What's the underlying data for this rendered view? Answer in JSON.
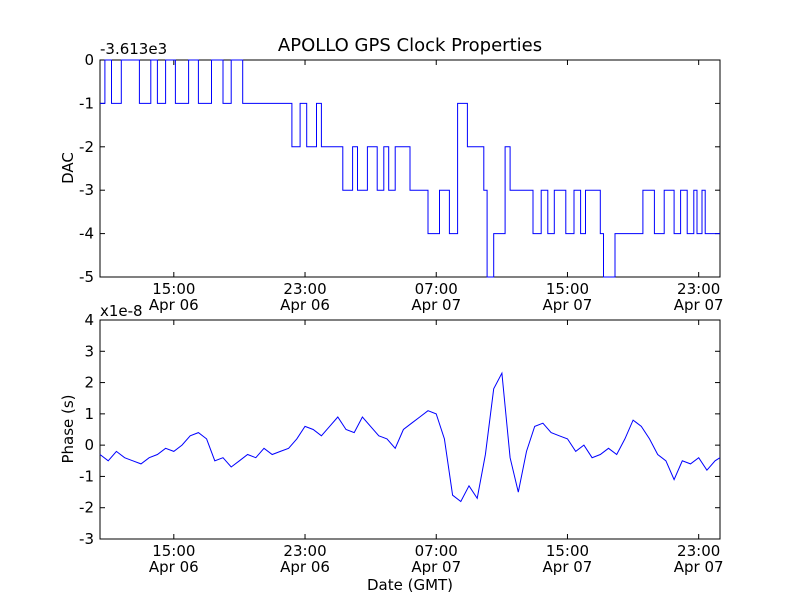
{
  "figure": {
    "title": "APOLLO GPS Clock Properties",
    "xlabel": "Date (GMT)",
    "line_color": "#0000ff"
  },
  "chart_data": [
    {
      "type": "line",
      "title": "APOLLO GPS Clock Properties",
      "ylabel": "DAC",
      "offset_label": "-3.613e3",
      "ylim": [
        -5,
        0
      ],
      "yticks": [
        "0",
        "-1",
        "-2",
        "-3",
        "-4",
        "-5"
      ],
      "xlim_hours": [
        10.5,
        48.3
      ],
      "xticks": [
        {
          "time": "15:00",
          "date": "Apr 06",
          "hour": 15
        },
        {
          "time": "23:00",
          "date": "Apr 06",
          "hour": 23
        },
        {
          "time": "07:00",
          "date": "Apr 07",
          "hour": 31
        },
        {
          "time": "15:00",
          "date": "Apr 07",
          "hour": 39
        },
        {
          "time": "23:00",
          "date": "Apr 07",
          "hour": 47
        }
      ],
      "series": [
        {
          "step": true,
          "x": [
            10.5,
            10.8,
            11.2,
            11.8,
            12.9,
            13.6,
            14.0,
            14.5,
            15.1,
            15.9,
            16.5,
            17.3,
            18.0,
            18.5,
            19.2,
            19.6,
            20.1,
            20.5,
            21.0,
            21.7,
            22.2,
            22.7,
            23.1,
            23.7,
            24.0,
            24.4,
            24.7,
            25.3,
            25.9,
            26.2,
            26.8,
            27.4,
            27.8,
            28.1,
            28.5,
            29.4,
            29.9,
            30.5,
            31.2,
            31.8,
            32.3,
            32.9,
            33.6,
            33.9,
            34.1,
            34.5,
            35.2,
            35.5,
            35.8,
            36.1,
            36.9,
            37.4,
            37.8,
            38.2,
            38.9,
            39.4,
            39.8,
            40.1,
            40.5,
            41.0,
            41.2,
            41.9,
            42.2,
            42.5,
            43.6,
            44.3,
            44.9,
            45.5,
            45.9,
            46.3,
            46.7,
            46.9,
            47.2,
            47.4,
            47.9,
            48.3
          ],
          "y": [
            -1,
            0,
            -1,
            0,
            -1,
            0,
            -1,
            0,
            -1,
            0,
            -1,
            0,
            -1,
            0,
            -1,
            -1,
            -1,
            -1,
            -1,
            -1,
            -2,
            -1,
            -2,
            -1,
            -2,
            -2,
            -2,
            -3,
            -2,
            -3,
            -2,
            -3,
            -2,
            -3,
            -2,
            -3,
            -3,
            -4,
            -3,
            -4,
            -1,
            -2,
            -2,
            -3,
            -5,
            -4,
            -2,
            -3,
            -3,
            -3,
            -4,
            -3,
            -4,
            -3,
            -4,
            -3,
            -4,
            -3,
            -3,
            -4,
            -5,
            -4,
            -4,
            -4,
            -3,
            -4,
            -3,
            -4,
            -3,
            -4,
            -3,
            -4,
            -3,
            -4,
            -4,
            -4
          ]
        }
      ]
    },
    {
      "type": "line",
      "ylabel": "Phase (s)",
      "offset_label": "x1e-8",
      "ylim": [
        -3,
        4
      ],
      "yticks": [
        "4",
        "3",
        "2",
        "1",
        "0",
        "-1",
        "-2",
        "-3"
      ],
      "xlim_hours": [
        10.5,
        48.3
      ],
      "xticks": [
        {
          "time": "15:00",
          "date": "Apr 06",
          "hour": 15
        },
        {
          "time": "23:00",
          "date": "Apr 06",
          "hour": 23
        },
        {
          "time": "07:00",
          "date": "Apr 07",
          "hour": 31
        },
        {
          "time": "15:00",
          "date": "Apr 07",
          "hour": 39
        },
        {
          "time": "23:00",
          "date": "Apr 07",
          "hour": 47
        }
      ],
      "series": [
        {
          "x": [
            10.5,
            11.0,
            11.5,
            12.0,
            12.5,
            13.0,
            13.5,
            14.0,
            14.5,
            15.0,
            15.5,
            16.0,
            16.5,
            17.0,
            17.5,
            18.0,
            18.5,
            19.0,
            19.5,
            20.0,
            20.5,
            21.0,
            21.5,
            22.0,
            22.5,
            23.0,
            23.5,
            24.0,
            24.5,
            25.0,
            25.5,
            26.0,
            26.5,
            27.0,
            27.5,
            28.0,
            28.5,
            29.0,
            29.5,
            30.0,
            30.5,
            31.0,
            31.5,
            32.0,
            32.5,
            33.0,
            33.5,
            34.0,
            34.5,
            35.0,
            35.5,
            36.0,
            36.5,
            37.0,
            37.5,
            38.0,
            38.5,
            39.0,
            39.5,
            40.0,
            40.5,
            41.0,
            41.5,
            42.0,
            42.5,
            43.0,
            43.5,
            44.0,
            44.5,
            45.0,
            45.5,
            46.0,
            46.5,
            47.0,
            47.5,
            48.0,
            48.3
          ],
          "y": [
            -0.3,
            -0.5,
            -0.2,
            -0.4,
            -0.5,
            -0.6,
            -0.4,
            -0.3,
            -0.1,
            -0.2,
            0.0,
            0.3,
            0.4,
            0.2,
            -0.5,
            -0.4,
            -0.7,
            -0.5,
            -0.3,
            -0.4,
            -0.1,
            -0.3,
            -0.2,
            -0.1,
            0.2,
            0.6,
            0.5,
            0.3,
            0.6,
            0.9,
            0.5,
            0.4,
            0.9,
            0.6,
            0.3,
            0.2,
            -0.1,
            0.5,
            0.7,
            0.9,
            1.1,
            1.0,
            0.2,
            -1.6,
            -1.8,
            -1.3,
            -1.7,
            -0.3,
            1.8,
            2.3,
            -0.4,
            -1.5,
            -0.2,
            0.6,
            0.7,
            0.4,
            0.3,
            0.2,
            -0.2,
            0.0,
            -0.4,
            -0.3,
            -0.1,
            -0.3,
            0.2,
            0.8,
            0.6,
            0.2,
            -0.3,
            -0.5,
            -1.1,
            -0.5,
            -0.6,
            -0.4,
            -0.8,
            -0.5,
            -0.4
          ]
        }
      ]
    }
  ]
}
